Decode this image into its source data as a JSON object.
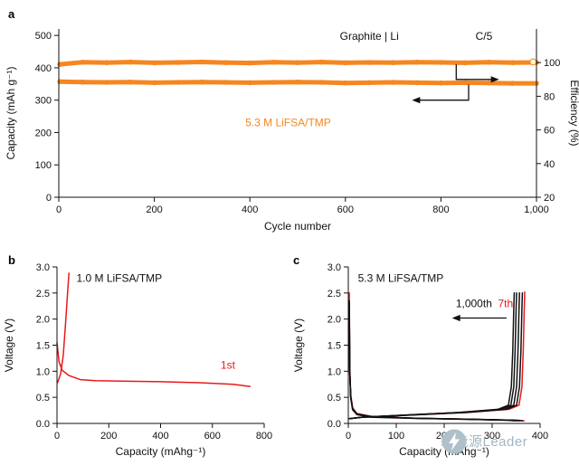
{
  "panels": {
    "a": "a",
    "b": "b",
    "c": "c"
  },
  "watermark": {
    "text": "新能源Leader",
    "logo": "energy-bolt-icon"
  },
  "colors": {
    "orange": "#F6861F",
    "red": "#E8191C",
    "black": "#111111",
    "watermark": "#A3B6C2"
  },
  "chart_data": [
    {
      "id": "a",
      "type": "line",
      "xlabel": "Cycle number",
      "ylabel_left": "Capacity (mAh g⁻¹)",
      "ylabel_right": "Efficiency (%)",
      "xlim": [
        0,
        1000
      ],
      "ylim_left": [
        0,
        520
      ],
      "ylim_right": [
        20,
        120
      ],
      "xticks": [
        0,
        200,
        400,
        600,
        800,
        1000
      ],
      "xtick_labels": [
        "0",
        "200",
        "400",
        "600",
        "800",
        "1,000"
      ],
      "yticks_left": [
        0,
        100,
        200,
        300,
        400,
        500
      ],
      "ytick_labels_left": [
        "0",
        "100",
        "200",
        "300",
        "400",
        "500"
      ],
      "yticks_right": [
        20,
        40,
        60,
        80,
        100
      ],
      "ytick_labels_right": [
        "20",
        "40",
        "60",
        "80",
        "100"
      ],
      "grid": false,
      "series": [
        {
          "name": "efficiency",
          "axis": "right",
          "color": "orange",
          "x": [
            2,
            50,
            100,
            150,
            200,
            250,
            300,
            350,
            400,
            450,
            500,
            550,
            600,
            650,
            700,
            750,
            800,
            850,
            900,
            950,
            1000
          ],
          "y": [
            99.0,
            100.2,
            100.0,
            100.3,
            99.9,
            100.1,
            100.4,
            100.0,
            99.8,
            100.2,
            100.0,
            100.3,
            99.9,
            100.1,
            100.0,
            100.2,
            100.1,
            99.9,
            100.2,
            100.0,
            100.1
          ]
        },
        {
          "name": "capacity",
          "axis": "left",
          "color": "orange",
          "x": [
            2,
            50,
            100,
            150,
            200,
            250,
            300,
            350,
            400,
            450,
            500,
            550,
            600,
            650,
            700,
            750,
            800,
            850,
            900,
            950,
            1000
          ],
          "y": [
            357,
            356,
            355,
            356,
            354,
            355,
            356,
            355,
            354,
            355,
            356,
            355,
            353,
            354,
            355,
            354,
            353,
            354,
            353,
            352,
            352
          ]
        }
      ],
      "annotations": [
        {
          "type": "text",
          "text": "Graphite | Li",
          "x": 650,
          "y": 498,
          "axis": "left",
          "color": "black",
          "anchor": "middle"
        },
        {
          "type": "text",
          "text": "C/5",
          "x": 890,
          "y": 498,
          "axis": "left",
          "color": "black",
          "anchor": "middle"
        },
        {
          "type": "text",
          "text": "5.3 M LiFSA/TMP",
          "x": 480,
          "y": 230,
          "axis": "left",
          "color": "orange",
          "anchor": "middle"
        },
        {
          "type": "arrow",
          "axis": "right",
          "points": [
            [
              832,
              99
            ],
            [
              832,
              90
            ],
            [
              916,
              90
            ]
          ]
        },
        {
          "type": "arrow",
          "axis": "left",
          "points": [
            [
              858,
              348
            ],
            [
              858,
              300
            ],
            [
              745,
              300
            ]
          ]
        },
        {
          "type": "open-dot",
          "axis": "right",
          "x": 993,
          "y": 100.4,
          "fill": "#FFF6D8",
          "stroke": "orange"
        }
      ]
    },
    {
      "id": "b",
      "type": "line",
      "xlabel": "Capacity (mAhg⁻¹)",
      "ylabel_left": "Voltage (V)",
      "xlim": [
        0,
        800
      ],
      "ylim_left": [
        0,
        3
      ],
      "xticks": [
        0,
        200,
        400,
        600,
        800
      ],
      "xtick_labels": [
        "0",
        "200",
        "400",
        "600",
        "800"
      ],
      "yticks_left": [
        0,
        0.5,
        1,
        1.5,
        2,
        2.5,
        3
      ],
      "ytick_labels_left": [
        "0.0",
        "0.5",
        "1.0",
        "1.5",
        "2.0",
        "2.5",
        "3.0"
      ],
      "grid": false,
      "series": [
        {
          "name": "discharge-1st",
          "axis": "left",
          "color": "red",
          "x": [
            0,
            8,
            20,
            45,
            90,
            150,
            250,
            400,
            550,
            680,
            745
          ],
          "y": [
            1.55,
            1.18,
            1.02,
            0.92,
            0.84,
            0.82,
            0.81,
            0.8,
            0.78,
            0.75,
            0.71
          ]
        },
        {
          "name": "charge-1st",
          "axis": "left",
          "color": "red",
          "x": [
            2,
            14,
            24,
            33,
            41,
            46
          ],
          "y": [
            0.78,
            0.95,
            1.3,
            1.9,
            2.5,
            2.88
          ]
        }
      ],
      "annotations": [
        {
          "type": "text",
          "text": "1.0 M LiFSA/TMP",
          "x": 75,
          "y": 2.78,
          "axis": "left",
          "color": "black",
          "anchor": "start"
        },
        {
          "type": "text",
          "text": "1st",
          "x": 660,
          "y": 1.12,
          "axis": "left",
          "color": "red",
          "anchor": "middle"
        }
      ]
    },
    {
      "id": "c",
      "type": "line",
      "xlabel": "Capacity (mAhg⁻¹)",
      "ylabel_left": "Voltage (V)",
      "xlim": [
        0,
        400
      ],
      "ylim_left": [
        0,
        3
      ],
      "xticks": [
        0,
        100,
        200,
        300,
        400
      ],
      "xtick_labels": [
        "0",
        "100",
        "200",
        "300",
        "400"
      ],
      "yticks_left": [
        0,
        0.5,
        1,
        1.5,
        2,
        2.5,
        3
      ],
      "ytick_labels_left": [
        "0.0",
        "0.5",
        "1.0",
        "1.5",
        "2.0",
        "2.5",
        "3.0"
      ],
      "grid": false,
      "series": [
        {
          "name": "discharge-7th",
          "axis": "left",
          "color": "red",
          "x": [
            2,
            3,
            5,
            9,
            18,
            50,
            140,
            260,
            355,
            367
          ],
          "y": [
            2.5,
            1.1,
            0.55,
            0.3,
            0.19,
            0.13,
            0.1,
            0.08,
            0.06,
            0.05
          ]
        },
        {
          "name": "charge-7th",
          "axis": "left",
          "color": "red",
          "x": [
            2,
            30,
            130,
            250,
            335,
            356,
            362,
            365,
            367,
            368
          ],
          "y": [
            0.09,
            0.12,
            0.16,
            0.21,
            0.27,
            0.35,
            0.7,
            1.4,
            2.2,
            2.52
          ]
        },
        {
          "name": "discharge-black-1",
          "axis": "left",
          "color": "black",
          "x": [
            2,
            3,
            5,
            9,
            18,
            50,
            140,
            255,
            350,
            363
          ],
          "y": [
            2.35,
            1.0,
            0.5,
            0.28,
            0.18,
            0.13,
            0.1,
            0.08,
            0.06,
            0.05
          ]
        },
        {
          "name": "charge-black-1",
          "axis": "left",
          "color": "black",
          "x": [
            2,
            30,
            130,
            245,
            330,
            351,
            357,
            360,
            362,
            363
          ],
          "y": [
            0.09,
            0.12,
            0.16,
            0.21,
            0.27,
            0.35,
            0.7,
            1.4,
            2.2,
            2.5
          ]
        },
        {
          "name": "discharge-black-2",
          "axis": "left",
          "color": "black",
          "x": [
            2,
            3,
            5,
            9,
            18,
            50,
            135,
            250,
            345,
            357
          ],
          "y": [
            2.3,
            1.0,
            0.5,
            0.27,
            0.18,
            0.13,
            0.1,
            0.08,
            0.06,
            0.05
          ]
        },
        {
          "name": "charge-black-2",
          "axis": "left",
          "color": "black",
          "x": [
            2,
            30,
            125,
            240,
            325,
            345,
            351,
            354,
            356,
            357
          ],
          "y": [
            0.09,
            0.12,
            0.16,
            0.21,
            0.27,
            0.35,
            0.7,
            1.4,
            2.2,
            2.5
          ]
        },
        {
          "name": "discharge-black-3",
          "axis": "left",
          "color": "black",
          "x": [
            2,
            3,
            5,
            9,
            18,
            48,
            130,
            245,
            340,
            351
          ],
          "y": [
            2.25,
            1.0,
            0.5,
            0.27,
            0.17,
            0.13,
            0.1,
            0.08,
            0.06,
            0.05
          ]
        },
        {
          "name": "charge-black-3",
          "axis": "left",
          "color": "black",
          "x": [
            2,
            28,
            120,
            235,
            318,
            339,
            345,
            348,
            350,
            351
          ],
          "y": [
            0.09,
            0.12,
            0.16,
            0.21,
            0.27,
            0.35,
            0.7,
            1.4,
            2.2,
            2.5
          ]
        },
        {
          "name": "discharge-black-1000th",
          "axis": "left",
          "color": "black",
          "x": [
            2,
            3,
            5,
            9,
            18,
            45,
            125,
            240,
            335,
            346
          ],
          "y": [
            2.2,
            0.95,
            0.48,
            0.26,
            0.17,
            0.12,
            0.1,
            0.08,
            0.06,
            0.05
          ]
        },
        {
          "name": "charge-black-1000th",
          "axis": "left",
          "color": "black",
          "x": [
            2,
            28,
            118,
            230,
            312,
            334,
            340,
            343,
            345,
            346
          ],
          "y": [
            0.09,
            0.12,
            0.16,
            0.21,
            0.27,
            0.35,
            0.7,
            1.4,
            2.2,
            2.5
          ]
        }
      ],
      "annotations": [
        {
          "type": "text",
          "text": "5.3 M LiFSA/TMP",
          "x": 20,
          "y": 2.78,
          "axis": "left",
          "color": "black",
          "anchor": "start"
        },
        {
          "type": "text",
          "text": "1,000th",
          "x": 262,
          "y": 2.3,
          "axis": "left",
          "color": "black",
          "anchor": "middle"
        },
        {
          "type": "text",
          "text": "7th",
          "x": 328,
          "y": 2.3,
          "axis": "left",
          "color": "red",
          "anchor": "middle"
        },
        {
          "type": "arrow",
          "axis": "left",
          "points": [
            [
              330,
              2.02
            ],
            [
              222,
              2.02
            ]
          ]
        }
      ]
    }
  ]
}
